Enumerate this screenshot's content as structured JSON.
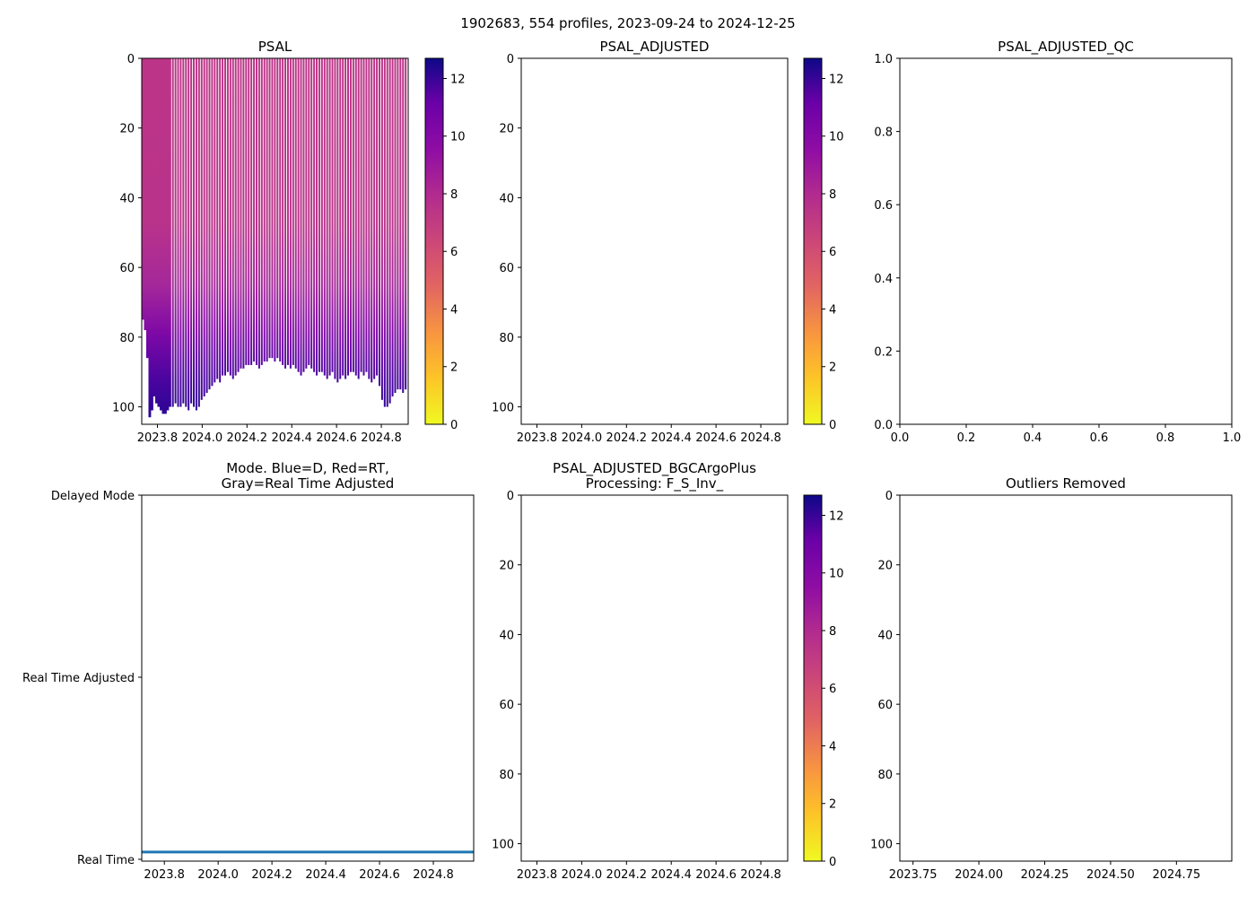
{
  "suptitle": "1902683, 554 profiles, 2023-09-24 to 2024-12-25",
  "colors": {
    "mode_line": "#1f77b4",
    "axis": "#000000"
  },
  "colormap": {
    "name": "plasma",
    "range": [
      0,
      12.7
    ],
    "ticks": [
      0,
      2,
      4,
      6,
      8,
      10,
      12
    ]
  },
  "chart_data": [
    {
      "id": "psal",
      "type": "heatmap",
      "title": "PSAL",
      "xlim": [
        2023.73,
        2024.92
      ],
      "ylim": [
        105,
        0
      ],
      "xticks": [
        2023.8,
        2024.0,
        2024.2,
        2024.4,
        2024.6,
        2024.8
      ],
      "xticklabels": [
        "2023.8",
        "2024.0",
        "2024.2",
        "2024.4",
        "2024.6",
        "2024.8"
      ],
      "yticks": [
        0,
        20,
        40,
        60,
        80,
        100
      ],
      "colorbar": true,
      "dense_block": {
        "start": 2023.73,
        "end": 2023.86,
        "max_depth": [
          75,
          78,
          86,
          103,
          101,
          97,
          99,
          100,
          101,
          102,
          102,
          101,
          100
        ]
      },
      "profiles": {
        "start": 2023.865,
        "step": 0.01168,
        "surface_value": 7.3,
        "deep_value": 11.8,
        "max_depth": [
          100,
          99,
          100,
          100,
          99,
          100,
          101,
          99,
          100,
          101,
          100,
          98,
          97,
          96,
          95,
          94,
          93,
          92,
          93,
          91,
          91,
          90,
          91,
          92,
          91,
          90,
          89,
          89,
          88,
          88,
          88,
          87,
          88,
          89,
          88,
          87,
          87,
          86,
          86,
          87,
          86,
          87,
          88,
          89,
          88,
          89,
          88,
          89,
          90,
          91,
          90,
          89,
          88,
          89,
          90,
          91,
          90,
          90,
          91,
          92,
          91,
          90,
          92,
          93,
          92,
          91,
          92,
          91,
          90,
          90,
          91,
          92,
          90,
          91,
          90,
          92,
          93,
          92,
          91,
          94,
          98,
          100,
          100,
          99,
          97,
          96,
          95,
          95,
          96,
          95
        ]
      }
    },
    {
      "id": "psal-adjusted",
      "type": "heatmap",
      "title": "PSAL_ADJUSTED",
      "xlim": [
        2023.73,
        2024.92
      ],
      "ylim": [
        105,
        0
      ],
      "xticks": [
        2023.8,
        2024.0,
        2024.2,
        2024.4,
        2024.6,
        2024.8
      ],
      "xticklabels": [
        "2023.8",
        "2024.0",
        "2024.2",
        "2024.4",
        "2024.6",
        "2024.8"
      ],
      "yticks": [
        0,
        20,
        40,
        60,
        80,
        100
      ],
      "colorbar": true
    },
    {
      "id": "psal-adjusted-qc",
      "type": "scatter",
      "title": "PSAL_ADJUSTED_QC",
      "xlim": [
        0,
        1
      ],
      "ylim": [
        0,
        1
      ],
      "xticks": [
        0,
        0.2,
        0.4,
        0.6,
        0.8,
        1.0
      ],
      "xticklabels": [
        "0.0",
        "0.2",
        "0.4",
        "0.6",
        "0.8",
        "1.0"
      ],
      "yticks": [
        0,
        0.2,
        0.4,
        0.6,
        0.8,
        1.0
      ],
      "yticklabels": [
        "0.0",
        "0.2",
        "0.4",
        "0.6",
        "0.8",
        "1.0"
      ],
      "colorbar": false
    },
    {
      "id": "mode",
      "type": "line",
      "title": "Mode. Blue=D, Red=RT,\nGray=Real Time Adjusted",
      "xlim": [
        2023.716,
        2024.95
      ],
      "ylim": [
        2.01,
        0
      ],
      "xticks": [
        2023.8,
        2024.0,
        2024.2,
        2024.4,
        2024.6,
        2024.8
      ],
      "xticklabels": [
        "2023.8",
        "2024.0",
        "2024.2",
        "2024.4",
        "2024.6",
        "2024.8"
      ],
      "yticks": [
        0,
        1,
        2
      ],
      "yticklabels": [
        "Delayed Mode",
        "Real Time Adjusted",
        "Real Time"
      ],
      "series": [
        {
          "name": "mode",
          "x": [
            2023.716,
            2024.95
          ],
          "y": [
            1.96,
            1.96
          ]
        }
      ],
      "colorbar": false
    },
    {
      "id": "bgc",
      "type": "heatmap",
      "title": "PSAL_ADJUSTED_BGCArgoPlus\nProcessing: F_S_Inv_",
      "xlim": [
        2023.73,
        2024.92
      ],
      "ylim": [
        105,
        0
      ],
      "xticks": [
        2023.8,
        2024.0,
        2024.2,
        2024.4,
        2024.6,
        2024.8
      ],
      "xticklabels": [
        "2023.8",
        "2024.0",
        "2024.2",
        "2024.4",
        "2024.6",
        "2024.8"
      ],
      "yticks": [
        0,
        20,
        40,
        60,
        80,
        100
      ],
      "colorbar": true
    },
    {
      "id": "outliers",
      "type": "scatter",
      "title": "Outliers Removed",
      "xlim": [
        2023.7,
        2024.96
      ],
      "ylim": [
        105,
        0
      ],
      "xticks": [
        2023.75,
        2024.0,
        2024.25,
        2024.5,
        2024.75
      ],
      "xticklabels": [
        "2023.75",
        "2024.00",
        "2024.25",
        "2024.50",
        "2024.75"
      ],
      "yticks": [
        0,
        20,
        40,
        60,
        80,
        100
      ],
      "colorbar": false
    }
  ]
}
